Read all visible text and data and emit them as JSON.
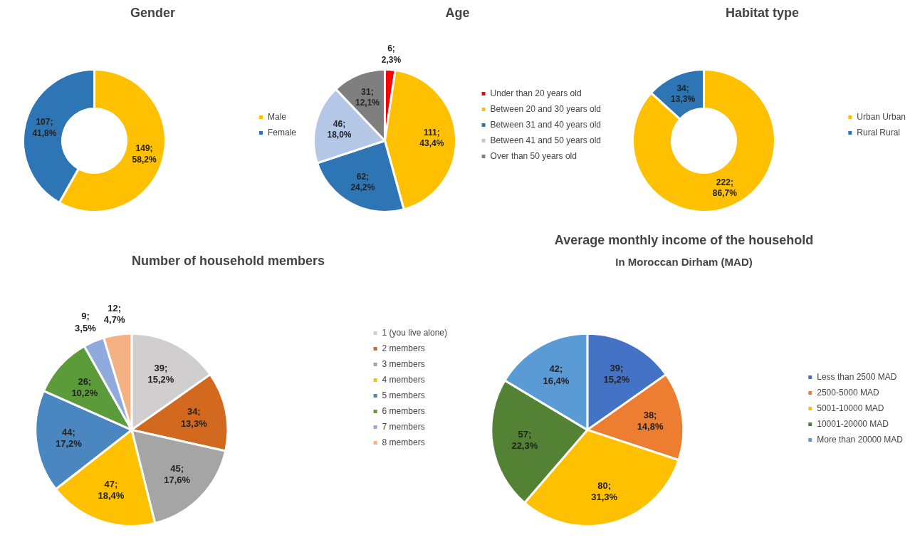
{
  "chart_data": [
    {
      "type": "donut",
      "title": "Gender",
      "categories": [
        "Male",
        "Female"
      ],
      "values": [
        149,
        107
      ],
      "colors": [
        "#ffc000",
        "#2e75b6"
      ],
      "value_labels": [
        "149; 58,2%",
        "107; 41,8%"
      ],
      "legend": "right"
    },
    {
      "type": "pie",
      "title": "Age",
      "categories": [
        "Under than 20 years old",
        "Between 20 and 30 years old",
        "Between 31 and 40 years old",
        "Between 41 and 50 years old",
        "Over than 50 years old"
      ],
      "values": [
        6,
        111,
        62,
        46,
        31
      ],
      "colors": [
        "#ff0000",
        "#ffc000",
        "#2e75b6",
        "#b4c7e7",
        "#7f7f7f"
      ],
      "value_labels": [
        "6; 2,3%",
        "111; 43,4%",
        "62; 24,2%",
        "46; 18,0%",
        "31; 12,1%"
      ],
      "legend": "right"
    },
    {
      "type": "donut",
      "title": "Habitat type",
      "categories": [
        "Urban Urban",
        "Rural Rural"
      ],
      "values": [
        222,
        34
      ],
      "colors": [
        "#ffc000",
        "#2e75b6"
      ],
      "value_labels": [
        "222; 86,7%",
        "34; 13,3%"
      ],
      "legend": "right"
    },
    {
      "type": "pie",
      "title": "Number of household members",
      "categories": [
        "1 (you live alone)",
        "2 members",
        "3 members",
        "4 members",
        "5 members",
        "6 members",
        "7 members",
        "8 members"
      ],
      "values": [
        39,
        34,
        45,
        47,
        44,
        26,
        9,
        12
      ],
      "colors": [
        "#d0cece",
        "#d2691e",
        "#a5a5a5",
        "#ffc000",
        "#4a86c0",
        "#5b9b3a",
        "#8faadc",
        "#f4b183"
      ],
      "value_labels": [
        "39; 15,2%",
        "34; 13,3%",
        "45; 17,6%",
        "47; 18,4%",
        "44; 17,2%",
        "26; 10,2%",
        "9; 3,5%",
        "12; 4,7%"
      ],
      "legend": "right"
    },
    {
      "type": "pie",
      "title": "Average monthly income of the household",
      "subtitle": "In Moroccan Dirham (MAD)",
      "categories": [
        "Less than 2500 MAD",
        "2500-5000 MAD",
        "5001-10000 MAD",
        "10001-20000 MAD",
        "More than 20000 MAD"
      ],
      "values": [
        39,
        38,
        80,
        57,
        42
      ],
      "colors": [
        "#4472c4",
        "#ed7d31",
        "#ffc000",
        "#548235",
        "#5b9bd5"
      ],
      "value_labels": [
        "39; 15,2%",
        "38; 14,8%",
        "80; 31,3%",
        "57; 22,3%",
        "42; 16,4%"
      ],
      "legend": "right"
    }
  ]
}
